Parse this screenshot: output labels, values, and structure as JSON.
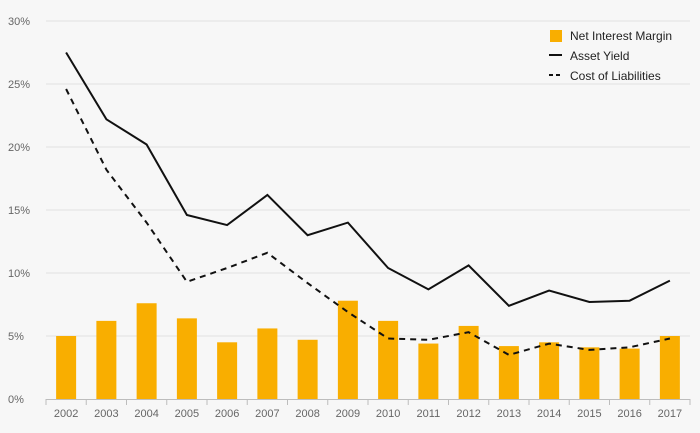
{
  "chart_data": {
    "type": "bar",
    "categories": [
      "2002",
      "2003",
      "2004",
      "2005",
      "2006",
      "2007",
      "2008",
      "2009",
      "2010",
      "2011",
      "2012",
      "2013",
      "2014",
      "2015",
      "2016",
      "2017"
    ],
    "series": [
      {
        "name": "Net Interest Margin",
        "type": "bar",
        "color": "#F9AE00",
        "values": [
          5.0,
          6.2,
          7.6,
          6.4,
          4.5,
          5.6,
          4.7,
          7.8,
          6.2,
          4.4,
          5.8,
          4.2,
          4.5,
          4.1,
          4.0,
          5.0
        ]
      },
      {
        "name": "Asset Yield",
        "type": "line",
        "style": "solid",
        "color": "#111111",
        "values": [
          27.5,
          22.2,
          20.2,
          14.6,
          13.8,
          16.2,
          13.0,
          14.0,
          10.4,
          8.7,
          10.6,
          7.4,
          8.6,
          7.7,
          7.8,
          9.4
        ]
      },
      {
        "name": "Cost of Liabilities",
        "type": "line",
        "style": "dashed",
        "color": "#111111",
        "values": [
          24.6,
          18.2,
          14.0,
          9.3,
          10.4,
          11.6,
          9.2,
          6.9,
          4.8,
          4.7,
          5.3,
          3.5,
          4.4,
          3.9,
          4.1,
          4.8
        ]
      }
    ],
    "y_ticks": [
      "0%",
      "5%",
      "10%",
      "15%",
      "20%",
      "25%",
      "30%"
    ],
    "ylim": [
      0,
      30
    ],
    "grid": true,
    "legend_position": "top-right"
  }
}
